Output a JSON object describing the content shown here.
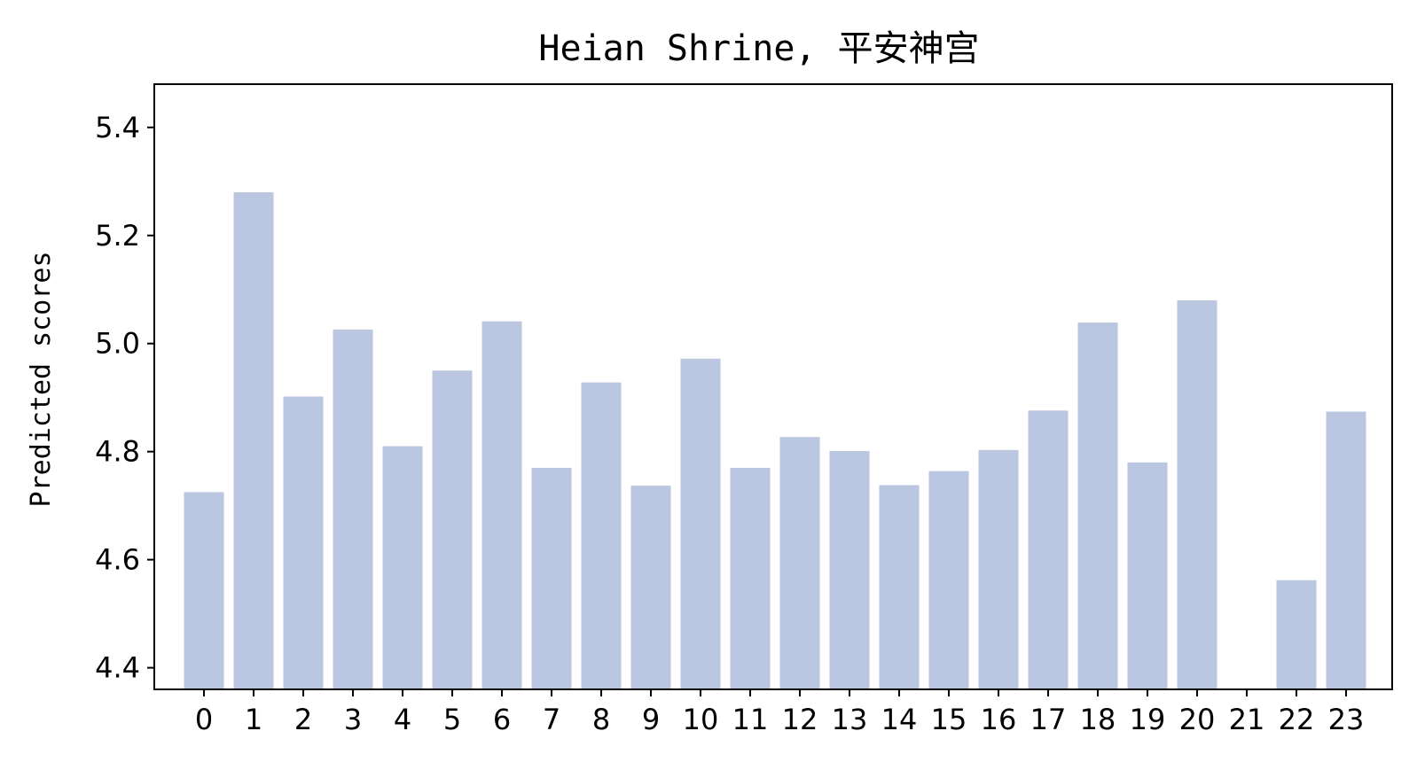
{
  "chart_data": {
    "type": "bar",
    "title": "Heian Shrine, 平安神宫",
    "xlabel": "",
    "ylabel": "Predicted scores",
    "categories": [
      "0",
      "1",
      "2",
      "3",
      "4",
      "5",
      "6",
      "7",
      "8",
      "9",
      "10",
      "11",
      "12",
      "13",
      "14",
      "15",
      "16",
      "17",
      "18",
      "19",
      "20",
      "21",
      "22",
      "23"
    ],
    "values": [
      4.725,
      5.28,
      4.902,
      5.026,
      4.81,
      4.95,
      5.041,
      4.77,
      4.928,
      4.737,
      4.972,
      4.77,
      4.827,
      4.801,
      4.738,
      4.764,
      4.803,
      4.876,
      5.039,
      4.78,
      5.08,
      null,
      4.562,
      4.874
    ],
    "ylim": [
      4.36,
      5.48
    ],
    "yticks": [
      "4.4",
      "4.6",
      "4.8",
      "5.0",
      "5.2",
      "5.4"
    ],
    "bar_color": "#bbc6e0",
    "grid": false,
    "legend": "none"
  }
}
